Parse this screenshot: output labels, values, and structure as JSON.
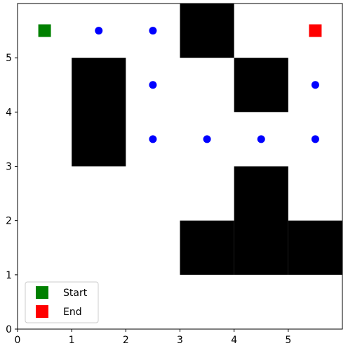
{
  "chart_data": {
    "type": "scatter",
    "title": "",
    "xlabel": "",
    "ylabel": "",
    "xlim": [
      0,
      6
    ],
    "ylim": [
      0,
      6
    ],
    "x_ticks": [
      "0",
      "1",
      "2",
      "3",
      "4",
      "5"
    ],
    "y_ticks": [
      "0",
      "1",
      "2",
      "3",
      "4",
      "5"
    ],
    "grid": false,
    "obstacles": [
      {
        "x": [
          3,
          4
        ],
        "y": [
          5,
          6
        ]
      },
      {
        "x": [
          1,
          2
        ],
        "y": [
          3,
          5
        ]
      },
      {
        "x": [
          4,
          5
        ],
        "y": [
          4,
          5
        ]
      },
      {
        "x": [
          4,
          5
        ],
        "y": [
          1,
          3
        ]
      },
      {
        "x": [
          3,
          4
        ],
        "y": [
          1,
          2
        ]
      },
      {
        "x": [
          5,
          6
        ],
        "y": [
          1,
          2
        ]
      }
    ],
    "path_points": {
      "x": [
        1.5,
        2.5,
        2.5,
        2.5,
        3.5,
        4.5,
        5.5,
        5.5
      ],
      "y": [
        5.5,
        5.5,
        4.5,
        3.5,
        3.5,
        3.5,
        3.5,
        4.5
      ],
      "color": "#0000ff"
    },
    "series": [
      {
        "name": "Start",
        "x": [
          0.5
        ],
        "y": [
          5.5
        ],
        "marker": "square",
        "color": "#008000"
      },
      {
        "name": "End",
        "x": [
          5.5
        ],
        "y": [
          5.5
        ],
        "marker": "square",
        "color": "#ff0000"
      }
    ],
    "legend_position": "lower-left"
  }
}
